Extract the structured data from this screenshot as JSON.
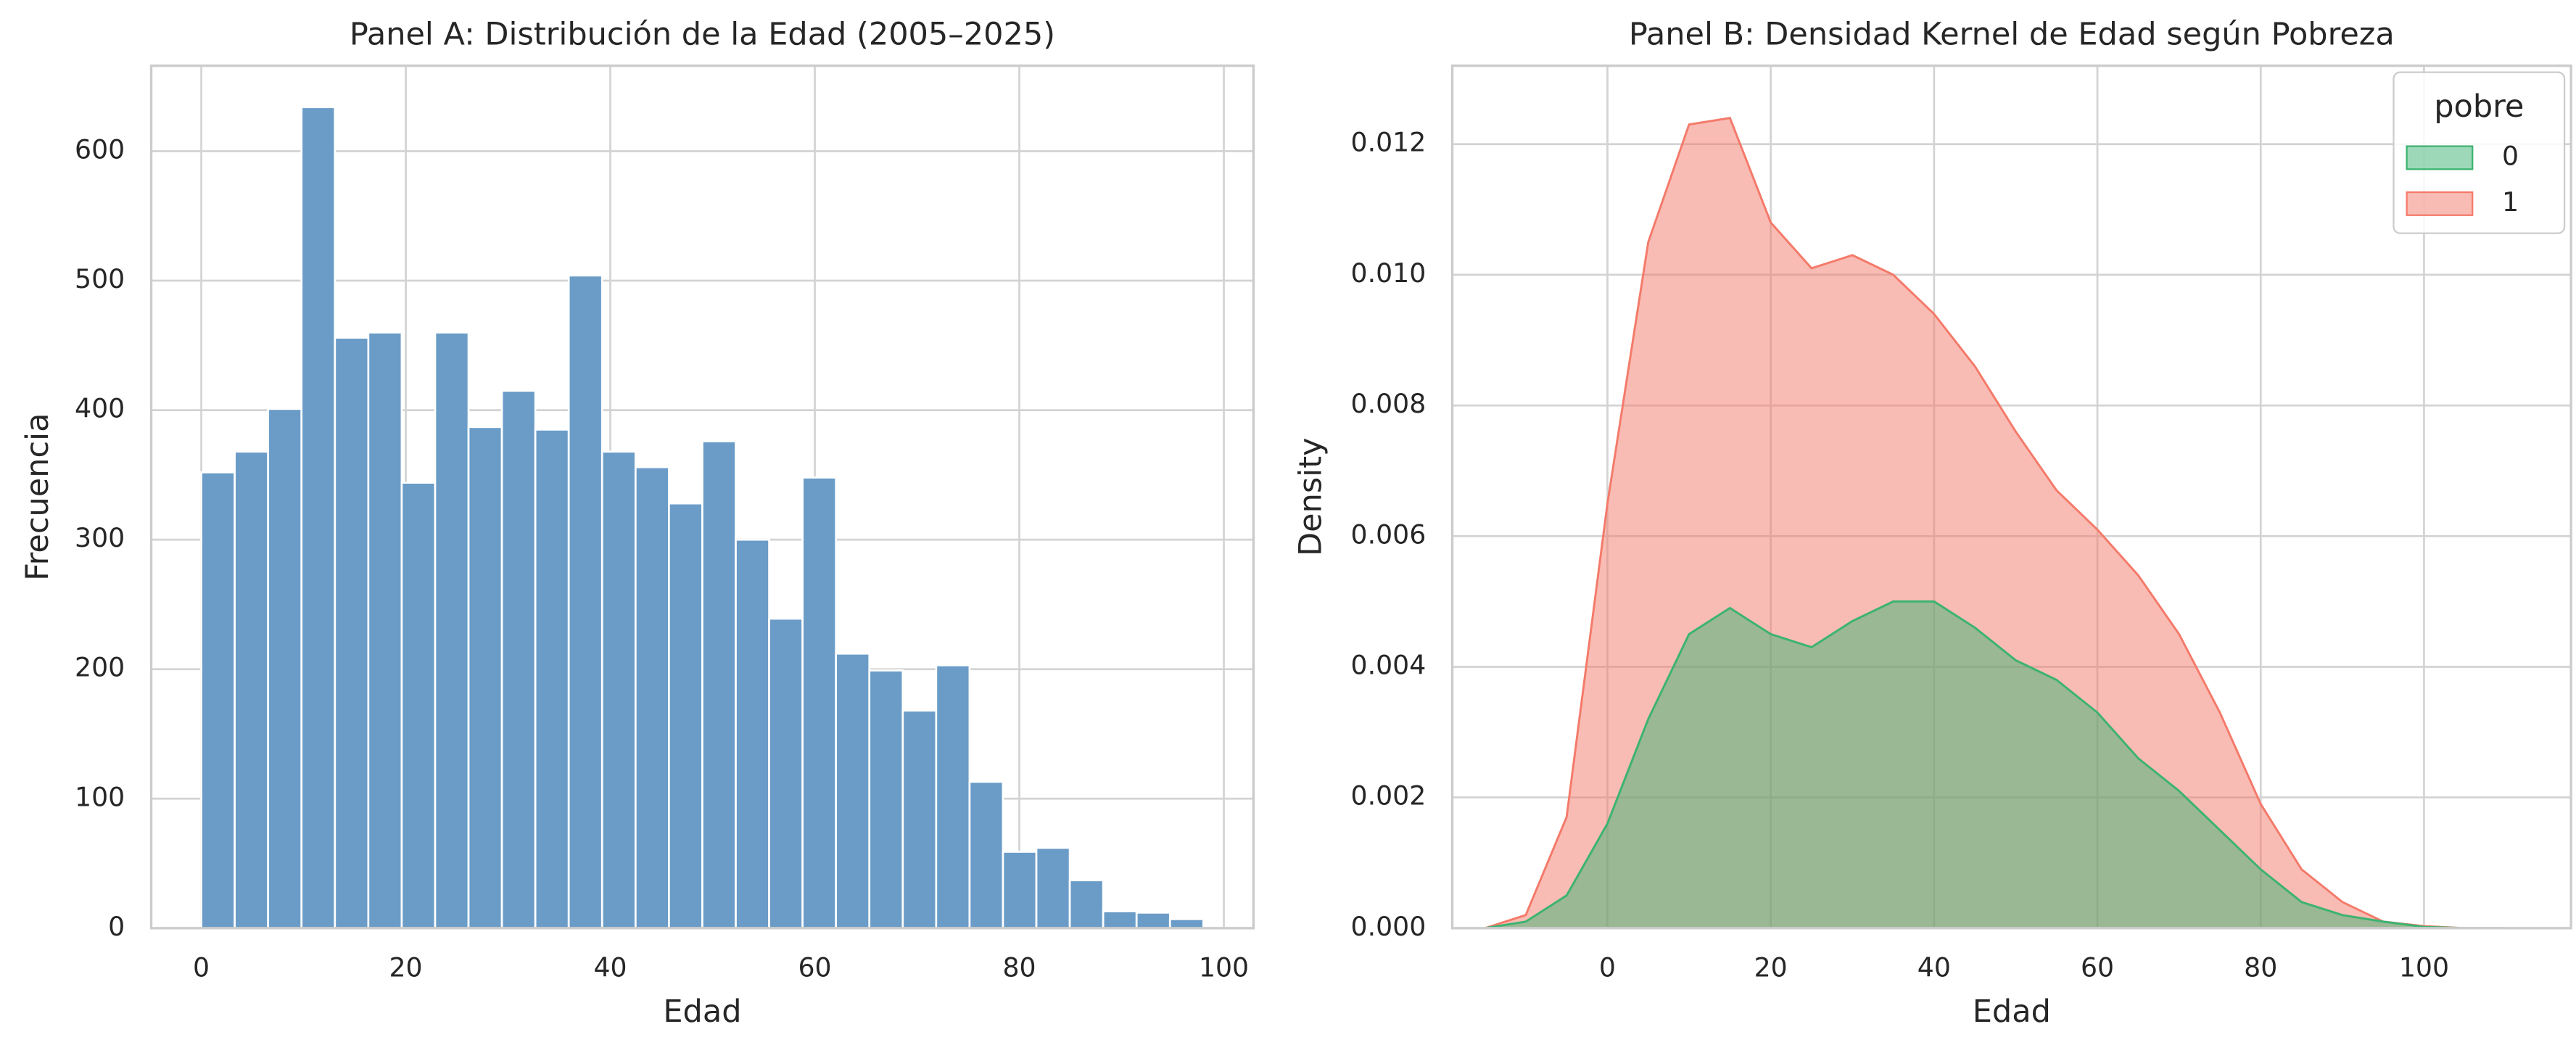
{
  "chart_data": [
    {
      "type": "histogram",
      "title": "Panel A: Distribución de la Edad (2005–2025)",
      "x_label": "Edad",
      "y_label": "Frecuencia",
      "bins": [
        0,
        3.2667,
        6.5333,
        9.8,
        13.0667,
        16.3333,
        19.6,
        22.8667,
        26.1333,
        29.4,
        32.6667,
        35.9333,
        39.2,
        42.4667,
        45.7333,
        49,
        52.2667,
        55.5333,
        58.8,
        62.0667,
        65.3333,
        68.6,
        71.8667,
        75.1333,
        78.4,
        81.6667,
        84.9333,
        88.2,
        91.4667,
        94.7333,
        98
      ],
      "values": [
        352,
        368,
        401,
        634,
        456,
        460,
        344,
        460,
        387,
        415,
        385,
        504,
        368,
        356,
        328,
        376,
        300,
        239,
        348,
        212,
        199,
        168,
        203,
        113,
        59,
        62,
        37,
        13,
        12,
        7
      ],
      "color": "#6a9cc7",
      "xlim": [
        -4.9,
        102.9
      ],
      "ylim": [
        0,
        666
      ],
      "xticks": [
        0,
        20,
        40,
        60,
        80,
        100
      ],
      "yticks": [
        0,
        100,
        200,
        300,
        400,
        500,
        600
      ],
      "grid": true
    },
    {
      "type": "area",
      "title": "Panel B: Densidad Kernel de Edad según Pobreza",
      "x_label": "Edad",
      "y_label": "Density",
      "legend_title": "pobre",
      "legend_position": "upper right",
      "x": [
        -15,
        -10,
        -5,
        0,
        5,
        10,
        15,
        20,
        25,
        30,
        35,
        40,
        45,
        50,
        55,
        60,
        65,
        70,
        75,
        80,
        85,
        90,
        95,
        100,
        105,
        110
      ],
      "series": [
        {
          "name": "0",
          "color": "#3cb371",
          "values": [
            0,
            0.0001,
            0.0005,
            0.0016,
            0.0032,
            0.0045,
            0.0049,
            0.0045,
            0.0043,
            0.0047,
            0.005,
            0.005,
            0.0046,
            0.0041,
            0.0038,
            0.0033,
            0.0026,
            0.0021,
            0.0015,
            0.0009,
            0.0004,
            0.0002,
            0.0001,
            2e-05,
            0,
            0
          ]
        },
        {
          "name": "1",
          "color": "#f47a6a",
          "values": [
            0,
            0.0002,
            0.0017,
            0.0065,
            0.0105,
            0.0123,
            0.0124,
            0.0108,
            0.0101,
            0.0103,
            0.01,
            0.0094,
            0.0086,
            0.0076,
            0.0067,
            0.0061,
            0.0054,
            0.0045,
            0.0033,
            0.0019,
            0.0009,
            0.0004,
            0.0001,
            3e-05,
            0,
            0
          ]
        }
      ],
      "xlim": [
        -19,
        118
      ],
      "ylim": [
        0,
        0.0132
      ],
      "xticks": [
        0,
        20,
        40,
        60,
        80,
        100
      ],
      "yticks": [
        {
          "value": 0,
          "label": "0.000"
        },
        {
          "value": 0.002,
          "label": "0.002"
        },
        {
          "value": 0.004,
          "label": "0.004"
        },
        {
          "value": 0.006,
          "label": "0.006"
        },
        {
          "value": 0.008,
          "label": "0.008"
        },
        {
          "value": 0.01,
          "label": "0.010"
        },
        {
          "value": 0.012,
          "label": "0.012"
        }
      ],
      "grid": true
    }
  ]
}
